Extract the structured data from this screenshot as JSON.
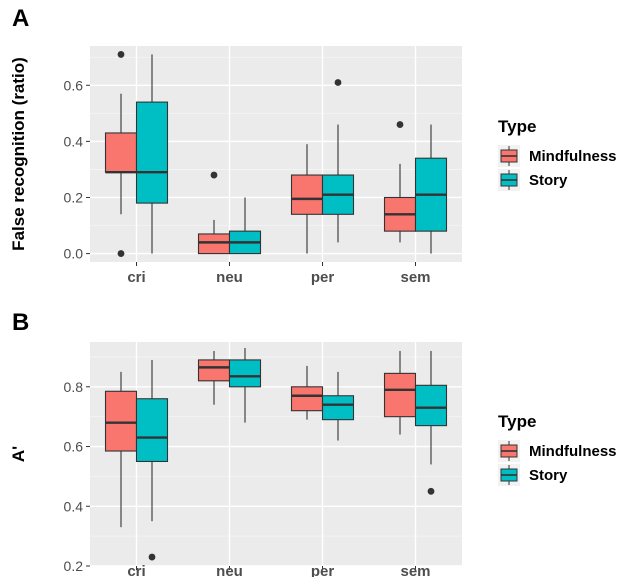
{
  "chart_data": [
    {
      "type": "boxplot",
      "panel_label": "A",
      "ylabel": "False recognition (ratio)",
      "ylim": [
        -0.03,
        0.74
      ],
      "y_ticks": [
        0.0,
        0.2,
        0.4,
        0.6
      ],
      "y_tick_labels": [
        "0.0",
        "0.2",
        "0.4",
        "0.6"
      ],
      "categories": [
        "cri",
        "neu",
        "per",
        "sem"
      ],
      "legend": {
        "title": "Type",
        "position": "right",
        "entries": [
          "Mindfulness",
          "Story"
        ]
      },
      "grid": true,
      "series": [
        {
          "name": "Mindfulness",
          "color": "#F8766D",
          "boxes": [
            {
              "category": "cri",
              "whisker_low": 0.14,
              "q1": 0.29,
              "median": 0.29,
              "q3": 0.43,
              "whisker_high": 0.57,
              "outliers": [
                0.71,
                0.0
              ]
            },
            {
              "category": "neu",
              "whisker_low": 0.0,
              "q1": 0.0,
              "median": 0.04,
              "q3": 0.07,
              "whisker_high": 0.12,
              "outliers": [
                0.28
              ]
            },
            {
              "category": "per",
              "whisker_low": 0.0,
              "q1": 0.14,
              "median": 0.195,
              "q3": 0.28,
              "whisker_high": 0.39,
              "outliers": []
            },
            {
              "category": "sem",
              "whisker_low": 0.04,
              "q1": 0.08,
              "median": 0.14,
              "q3": 0.2,
              "whisker_high": 0.32,
              "outliers": [
                0.46
              ]
            }
          ]
        },
        {
          "name": "Story",
          "color": "#00BFC4",
          "boxes": [
            {
              "category": "cri",
              "whisker_low": 0.0,
              "q1": 0.18,
              "median": 0.29,
              "q3": 0.54,
              "whisker_high": 0.71,
              "outliers": []
            },
            {
              "category": "neu",
              "whisker_low": 0.0,
              "q1": 0.0,
              "median": 0.04,
              "q3": 0.08,
              "whisker_high": 0.2,
              "outliers": []
            },
            {
              "category": "per",
              "whisker_low": 0.04,
              "q1": 0.14,
              "median": 0.21,
              "q3": 0.28,
              "whisker_high": 0.46,
              "outliers": [
                0.61
              ]
            },
            {
              "category": "sem",
              "whisker_low": 0.0,
              "q1": 0.08,
              "median": 0.21,
              "q3": 0.34,
              "whisker_high": 0.46,
              "outliers": []
            }
          ]
        }
      ]
    },
    {
      "type": "boxplot",
      "panel_label": "B",
      "ylabel": "A'",
      "ylim": [
        0.2,
        0.95
      ],
      "y_ticks": [
        0.2,
        0.4,
        0.6,
        0.8
      ],
      "y_tick_labels": [
        "0.2",
        "0.4",
        "0.6",
        "0.8"
      ],
      "categories": [
        "cri",
        "neu",
        "per",
        "sem"
      ],
      "legend": {
        "title": "Type",
        "position": "right",
        "entries": [
          "Mindfulness",
          "Story"
        ]
      },
      "grid": true,
      "series": [
        {
          "name": "Mindfulness",
          "color": "#F8766D",
          "boxes": [
            {
              "category": "cri",
              "whisker_low": 0.33,
              "q1": 0.585,
              "median": 0.68,
              "q3": 0.785,
              "whisker_high": 0.85,
              "outliers": []
            },
            {
              "category": "neu",
              "whisker_low": 0.74,
              "q1": 0.82,
              "median": 0.865,
              "q3": 0.89,
              "whisker_high": 0.92,
              "outliers": []
            },
            {
              "category": "per",
              "whisker_low": 0.69,
              "q1": 0.72,
              "median": 0.77,
              "q3": 0.8,
              "whisker_high": 0.87,
              "outliers": []
            },
            {
              "category": "sem",
              "whisker_low": 0.64,
              "q1": 0.7,
              "median": 0.79,
              "q3": 0.845,
              "whisker_high": 0.92,
              "outliers": []
            }
          ]
        },
        {
          "name": "Story",
          "color": "#00BFC4",
          "boxes": [
            {
              "category": "cri",
              "whisker_low": 0.35,
              "q1": 0.55,
              "median": 0.63,
              "q3": 0.76,
              "whisker_high": 0.89,
              "outliers": [
                0.23
              ]
            },
            {
              "category": "neu",
              "whisker_low": 0.68,
              "q1": 0.8,
              "median": 0.835,
              "q3": 0.89,
              "whisker_high": 0.93,
              "outliers": []
            },
            {
              "category": "per",
              "whisker_low": 0.62,
              "q1": 0.69,
              "median": 0.74,
              "q3": 0.77,
              "whisker_high": 0.85,
              "outliers": []
            },
            {
              "category": "sem",
              "whisker_low": 0.54,
              "q1": 0.67,
              "median": 0.73,
              "q3": 0.805,
              "whisker_high": 0.92,
              "outliers": [
                0.45
              ]
            }
          ]
        }
      ]
    }
  ]
}
